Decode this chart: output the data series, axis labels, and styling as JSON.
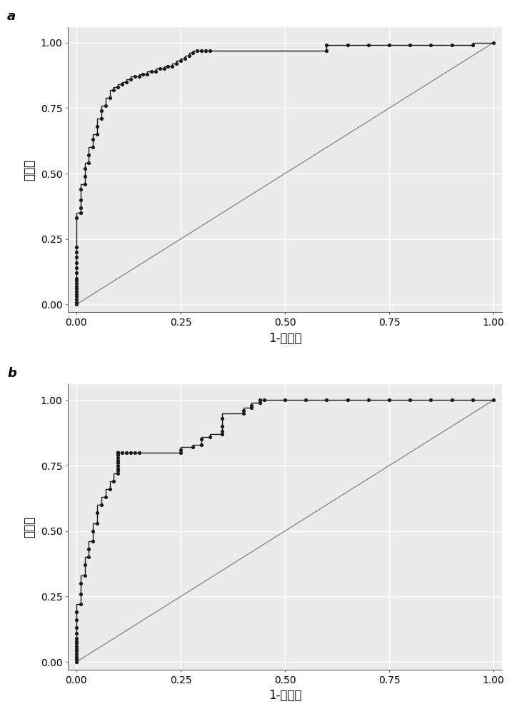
{
  "panel_a_label": "a",
  "panel_b_label": "b",
  "xlabel": "1-特异度",
  "ylabel": "敏感度",
  "xlabel_fontsize": 12,
  "ylabel_fontsize": 12,
  "tick_fontsize": 10,
  "panel_label_fontsize": 13,
  "bg_color": "#ebebeb",
  "curve_color": "#1a1a1a",
  "diag_color": "#808080",
  "dot_size": 14,
  "line_width": 1.0,
  "diag_lw": 0.9,
  "roc_a_fpr": [
    0.0,
    0.0,
    0.0,
    0.0,
    0.0,
    0.0,
    0.0,
    0.0,
    0.0,
    0.0,
    0.0,
    0.0,
    0.0,
    0.0,
    0.0,
    0.0,
    0.0,
    0.0,
    0.01,
    0.01,
    0.01,
    0.01,
    0.02,
    0.02,
    0.02,
    0.03,
    0.03,
    0.04,
    0.04,
    0.05,
    0.05,
    0.06,
    0.06,
    0.07,
    0.08,
    0.09,
    0.1,
    0.11,
    0.12,
    0.13,
    0.14,
    0.15,
    0.16,
    0.17,
    0.18,
    0.19,
    0.2,
    0.21,
    0.22,
    0.23,
    0.24,
    0.25,
    0.26,
    0.27,
    0.28,
    0.29,
    0.3,
    0.31,
    0.32,
    0.6,
    0.6,
    0.65,
    0.7,
    0.75,
    0.8,
    0.85,
    0.9,
    0.95,
    1.0
  ],
  "roc_a_tpr": [
    0.0,
    0.01,
    0.02,
    0.03,
    0.04,
    0.05,
    0.06,
    0.07,
    0.08,
    0.09,
    0.1,
    0.12,
    0.14,
    0.16,
    0.18,
    0.2,
    0.22,
    0.33,
    0.35,
    0.37,
    0.4,
    0.44,
    0.46,
    0.49,
    0.52,
    0.54,
    0.57,
    0.6,
    0.63,
    0.65,
    0.68,
    0.71,
    0.74,
    0.76,
    0.79,
    0.82,
    0.83,
    0.84,
    0.85,
    0.86,
    0.87,
    0.87,
    0.88,
    0.88,
    0.89,
    0.89,
    0.9,
    0.9,
    0.91,
    0.91,
    0.92,
    0.93,
    0.94,
    0.95,
    0.96,
    0.97,
    0.97,
    0.97,
    0.97,
    0.97,
    0.99,
    0.99,
    0.99,
    0.99,
    0.99,
    0.99,
    0.99,
    0.99,
    1.0
  ],
  "roc_b_fpr": [
    0.0,
    0.0,
    0.0,
    0.0,
    0.0,
    0.0,
    0.0,
    0.0,
    0.0,
    0.0,
    0.0,
    0.0,
    0.0,
    0.0,
    0.01,
    0.01,
    0.01,
    0.02,
    0.02,
    0.03,
    0.03,
    0.04,
    0.04,
    0.05,
    0.05,
    0.06,
    0.07,
    0.08,
    0.09,
    0.1,
    0.1,
    0.1,
    0.1,
    0.1,
    0.1,
    0.1,
    0.1,
    0.1,
    0.1,
    0.1,
    0.1,
    0.1,
    0.1,
    0.1,
    0.1,
    0.11,
    0.12,
    0.13,
    0.14,
    0.15,
    0.25,
    0.25,
    0.28,
    0.3,
    0.3,
    0.32,
    0.35,
    0.35,
    0.35,
    0.35,
    0.4,
    0.4,
    0.42,
    0.42,
    0.44,
    0.44,
    0.44,
    0.45,
    0.5,
    0.55,
    0.6,
    0.65,
    0.7,
    0.75,
    0.8,
    0.85,
    0.9,
    0.95,
    1.0
  ],
  "roc_b_tpr": [
    0.0,
    0.01,
    0.02,
    0.03,
    0.04,
    0.05,
    0.06,
    0.07,
    0.08,
    0.09,
    0.11,
    0.13,
    0.16,
    0.19,
    0.22,
    0.26,
    0.3,
    0.33,
    0.37,
    0.4,
    0.43,
    0.46,
    0.5,
    0.53,
    0.57,
    0.6,
    0.63,
    0.66,
    0.69,
    0.72,
    0.73,
    0.74,
    0.75,
    0.76,
    0.77,
    0.78,
    0.79,
    0.8,
    0.8,
    0.8,
    0.8,
    0.8,
    0.8,
    0.8,
    0.8,
    0.8,
    0.8,
    0.8,
    0.8,
    0.8,
    0.8,
    0.81,
    0.82,
    0.83,
    0.85,
    0.86,
    0.87,
    0.88,
    0.9,
    0.93,
    0.95,
    0.96,
    0.97,
    0.98,
    0.99,
    0.99,
    1.0,
    1.0,
    1.0,
    1.0,
    1.0,
    1.0,
    1.0,
    1.0,
    1.0,
    1.0,
    1.0,
    1.0,
    1.0
  ]
}
